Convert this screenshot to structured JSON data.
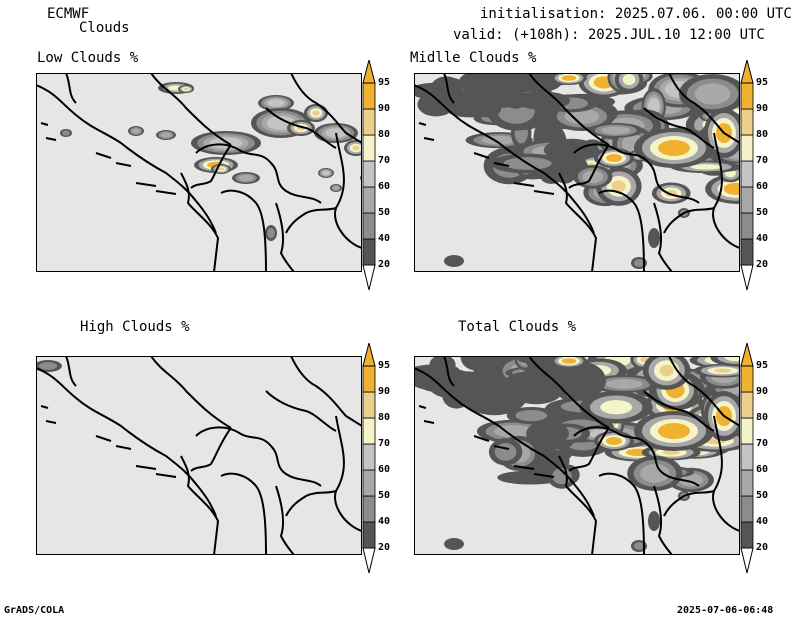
{
  "header": {
    "model": "ECMWF",
    "product": "Clouds",
    "init_line": "initialisation: 2025.07.06. 00:00 UTC",
    "valid_line": "valid: (+108h): 2025.JUL.10 12:00 UTC"
  },
  "panels": [
    {
      "title": "Low Clouds %"
    },
    {
      "title": "Midlle Clouds %"
    },
    {
      "title": "High Clouds %"
    },
    {
      "title": "Total Clouds %"
    }
  ],
  "colorbar": {
    "levels": [
      "20",
      "40",
      "50",
      "60",
      "70",
      "80",
      "90",
      "95"
    ],
    "colors": {
      "c20_40": "#555555",
      "c40_50": "#8c8c8c",
      "c50_60": "#a8a8a8",
      "c60_70": "#c4c4c4",
      "c70_80": "#f4f4c8",
      "c80_90": "#ead08a",
      "c90_95": "#f0b030",
      "c95": "#f0b030",
      "below": "#ffffff",
      "background": "#e6e6e6"
    }
  },
  "footer": {
    "left": "GrADS/COLA",
    "right": "2025-07-06-06:48"
  }
}
